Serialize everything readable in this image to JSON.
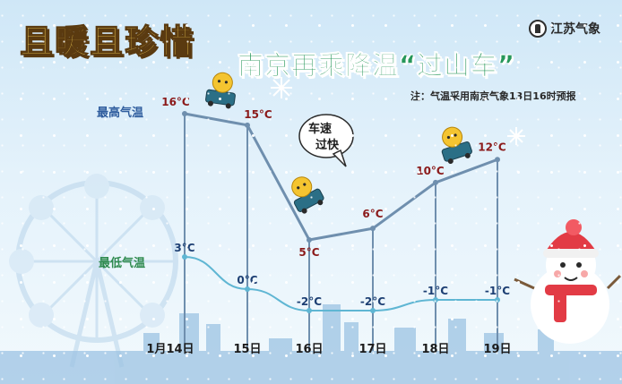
{
  "header": {
    "title_left": "且暖且珍惜",
    "title_right": "南京再乘降温“过山车”",
    "brand": "江苏气象",
    "note": "注：气温采用南京气象13日16时预报"
  },
  "bubble": {
    "line1": "车速",
    "line2": "过快"
  },
  "colors": {
    "high": "#8b1a1a",
    "high_line": "#6f8fae",
    "low": "#1d3f73",
    "low_line": "#5fb6d3",
    "high_series_label": "#2f5d9e",
    "low_series_label": "#2e8a4e",
    "title_left": "#f6d155",
    "title_right": "#27975a"
  },
  "chart_data": {
    "type": "line",
    "categories": [
      "1月14日",
      "15日",
      "16日",
      "17日",
      "18日",
      "19日"
    ],
    "series": [
      {
        "name": "最高气温",
        "values": [
          16,
          15,
          5,
          6,
          10,
          12
        ],
        "labels": [
          "16°C",
          "15°C",
          "5°C",
          "6°C",
          "10°C",
          "12°C"
        ]
      },
      {
        "name": "最低气温",
        "values": [
          3,
          0,
          -2,
          -2,
          -1,
          -1
        ],
        "labels": [
          "3°C",
          "0°C",
          "-2°C",
          "-2°C",
          "-1°C",
          "-1°C"
        ]
      }
    ],
    "unit": "°C",
    "ylim": [
      -6,
      18
    ],
    "grid": false,
    "legend": "inline labels on the left"
  }
}
